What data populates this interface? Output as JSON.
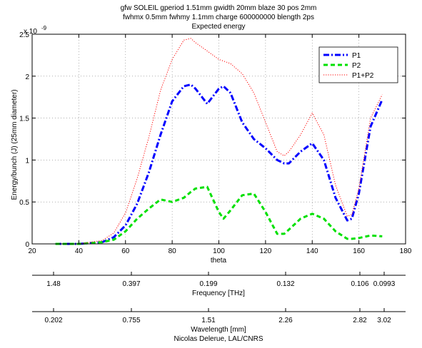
{
  "chart_data": {
    "type": "line",
    "title": [
      "gfw SOLEIL gperiod 1.51mm gwidth 20mm blaze 30 pos 2mm",
      "fwhmx 0.5mm fwhmy 1.1mm charge 600000000 blength 2ps",
      "Expected energy"
    ],
    "xlabel": "theta",
    "ylabel": "Energy/bunch (J) (25mm diameter)",
    "xlim": [
      20,
      180
    ],
    "ylim": [
      0,
      2.5
    ],
    "xticks": [
      20,
      40,
      60,
      80,
      100,
      120,
      140,
      160,
      180
    ],
    "yticks": [
      0,
      0.5,
      1,
      1.5,
      2,
      2.5
    ],
    "ytick_labels": [
      "0",
      "0.5",
      "1",
      "1.5",
      "2",
      "2.5"
    ],
    "y_exponent_prefix": "x 10",
    "y_exponent": "-9",
    "grid": true,
    "legend_position": "top-right",
    "x": [
      30,
      35,
      40,
      45,
      50,
      55,
      60,
      65,
      70,
      75,
      80,
      85,
      88,
      90,
      95,
      100,
      102,
      105,
      110,
      115,
      120,
      125,
      128,
      130,
      135,
      140,
      145,
      150,
      155,
      157,
      160,
      165,
      170
    ],
    "series": [
      {
        "name": "P1",
        "color": "#0000ff",
        "style": "dashdot",
        "values": [
          0,
          0,
          0,
          0.01,
          0.02,
          0.08,
          0.22,
          0.48,
          0.85,
          1.3,
          1.7,
          1.88,
          1.9,
          1.85,
          1.67,
          1.85,
          1.88,
          1.8,
          1.45,
          1.25,
          1.14,
          1.0,
          0.96,
          0.96,
          1.1,
          1.2,
          1.0,
          0.55,
          0.28,
          0.3,
          0.6,
          1.4,
          1.72
        ]
      },
      {
        "name": "P2",
        "color": "#00e000",
        "style": "dashed",
        "values": [
          0,
          0,
          0,
          0.01,
          0.02,
          0.05,
          0.15,
          0.3,
          0.42,
          0.53,
          0.5,
          0.55,
          0.62,
          0.66,
          0.68,
          0.38,
          0.3,
          0.4,
          0.58,
          0.6,
          0.38,
          0.12,
          0.12,
          0.17,
          0.3,
          0.36,
          0.3,
          0.15,
          0.06,
          0.06,
          0.07,
          0.1,
          0.09
        ]
      },
      {
        "name": "P1+P2",
        "color": "#ff0000",
        "style": "dotted",
        "values": [
          0,
          0,
          0,
          0.02,
          0.04,
          0.13,
          0.37,
          0.78,
          1.27,
          1.83,
          2.2,
          2.43,
          2.45,
          2.4,
          2.3,
          2.2,
          2.18,
          2.15,
          2.03,
          1.8,
          1.45,
          1.1,
          1.05,
          1.1,
          1.3,
          1.56,
          1.3,
          0.7,
          0.33,
          0.35,
          0.66,
          1.5,
          1.78
        ]
      }
    ],
    "secondary_axes": [
      {
        "tick_labels": [
          "1.48",
          "0.397",
          "0.199",
          "0.132",
          "0.106",
          "0.0993"
        ],
        "label": "Frequency [THz]"
      },
      {
        "tick_labels": [
          "0.202",
          "0.755",
          "1.51",
          "2.26",
          "2.82",
          "3.02"
        ],
        "label": "Wavelength [mm]"
      }
    ],
    "footer": "Nicolas Delerue, LAL/CNRS"
  }
}
